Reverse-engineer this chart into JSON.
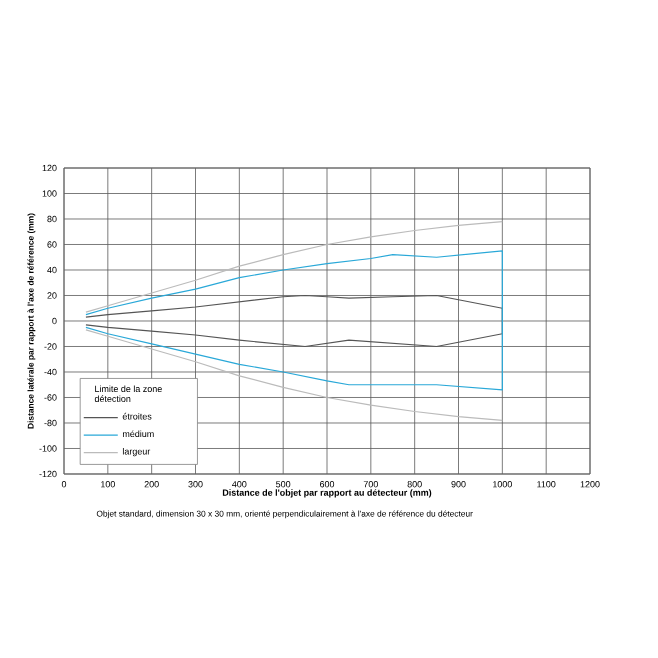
{
  "chart_data": {
    "type": "line",
    "xlabel": "Distance de l'objet par rapport au détecteur (mm)",
    "ylabel": "Distance latérale par rapport à l'axe de référence (mm)",
    "legend_title": "Limite de la zone détection",
    "annotations": [
      "Objet standard, dimension 30 x 30 mm, orienté perpendiculairement à l'axe de référence du détecteur"
    ],
    "xlim": [
      0,
      1200
    ],
    "ylim": [
      -120,
      120
    ],
    "xticks": [
      0,
      100,
      200,
      300,
      400,
      500,
      600,
      700,
      800,
      900,
      1000,
      1100,
      1200
    ],
    "yticks": [
      -120,
      -100,
      -80,
      -60,
      -40,
      -20,
      0,
      20,
      40,
      60,
      80,
      100,
      120
    ],
    "grid": true,
    "legend": "bottom left",
    "series": [
      {
        "name": "étroites",
        "color": "#555555",
        "x": [
          50,
          100,
          200,
          300,
          500,
          550,
          600,
          650,
          750,
          850,
          1000,
          1000,
          850,
          650,
          550,
          400,
          300,
          200,
          100,
          50
        ],
        "values": [
          3,
          5,
          8,
          11,
          19,
          20,
          19,
          18,
          19,
          20,
          10,
          -10,
          -20,
          -15,
          -20,
          -15,
          -11,
          -8,
          -5,
          -3
        ]
      },
      {
        "name": "médium",
        "color": "#29a8d8",
        "x": [
          50,
          100,
          200,
          300,
          400,
          500,
          600,
          700,
          750,
          850,
          1000,
          1000,
          850,
          650,
          600,
          500,
          400,
          200,
          100,
          50
        ],
        "values": [
          5,
          10,
          18,
          25,
          34,
          40,
          45,
          49,
          52,
          50,
          55,
          -54,
          -50,
          -50,
          -47,
          -40,
          -34,
          -18,
          -10,
          -5
        ]
      },
      {
        "name": "largeur",
        "color": "#bbbbbb",
        "x": [
          50,
          100,
          200,
          300,
          400,
          500,
          600,
          700,
          800,
          900,
          1000,
          null,
          1000,
          900,
          800,
          700,
          600,
          500,
          400,
          300,
          200,
          100,
          50
        ],
        "values": [
          7,
          12,
          22,
          32,
          43,
          52,
          60,
          66,
          71,
          75,
          78,
          null,
          -78,
          -75,
          -71,
          -66,
          -60,
          -52,
          -43,
          -32,
          -22,
          -12,
          -7
        ]
      }
    ]
  }
}
